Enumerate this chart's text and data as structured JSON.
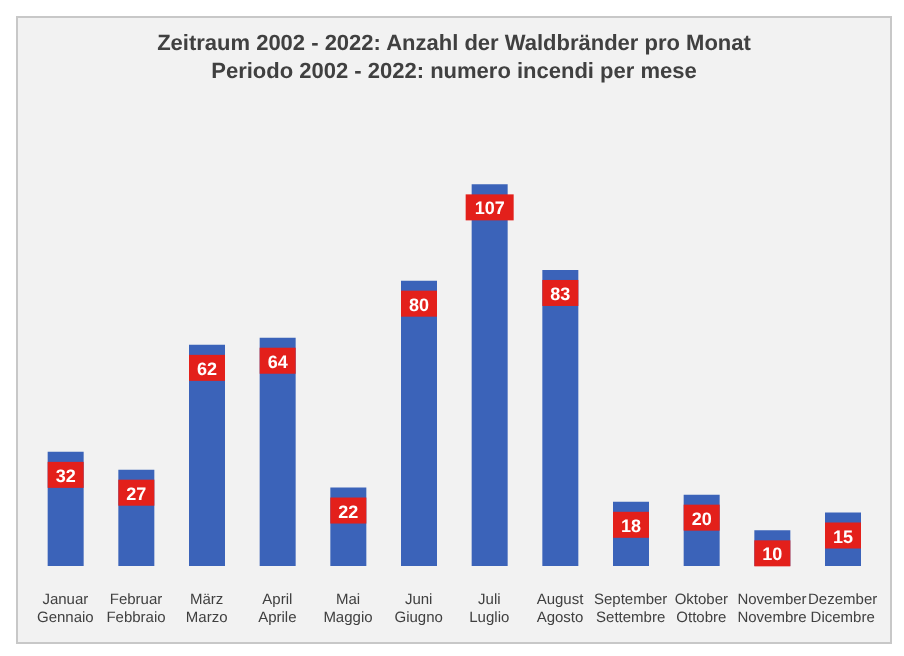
{
  "chart_data": {
    "type": "bar",
    "title": "Zeitraum 2002 - 2022: Anzahl der Waldbränder pro Monat",
    "subtitle": "Periodo 2002 - 2022: numero incendi per mese",
    "categories": [
      "Januar\nGennaio",
      "Februar\nFebbraio",
      "März\nMarzo",
      "April\nAprile",
      "Mai\nMaggio",
      "Juni\nGiugno",
      "Juli\nLuglio",
      "August\nAgosto",
      "September\nSettembre",
      "Oktober\nOttobre",
      "November\nNovembre",
      "Dezember\nDicembre"
    ],
    "values": [
      32,
      27,
      62,
      64,
      22,
      80,
      107,
      83,
      18,
      20,
      10,
      15
    ],
    "color": "#3b63b9",
    "data_labels": true,
    "grid": false,
    "legend": false
  }
}
